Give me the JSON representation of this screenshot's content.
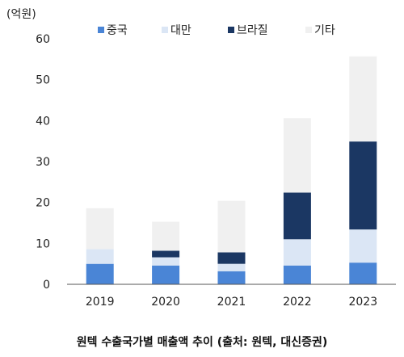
{
  "chart_data": {
    "type": "bar",
    "stacked": true,
    "unit_label": "(억원)",
    "caption": "원텍 수출국가별 매출액 추이 (출처: 원텍, 대신증권)",
    "categories": [
      "2019",
      "2020",
      "2021",
      "2022",
      "2023"
    ],
    "series": [
      {
        "name": "중국",
        "color": "#4a85d6",
        "values": [
          5.0,
          4.6,
          3.2,
          4.6,
          5.3
        ]
      },
      {
        "name": "대만",
        "color": "#dbe6f5",
        "values": [
          3.6,
          2.0,
          1.8,
          6.4,
          8.1
        ]
      },
      {
        "name": "브라질",
        "color": "#1b3763",
        "values": [
          0.0,
          1.6,
          2.8,
          11.4,
          21.5
        ]
      },
      {
        "name": "기타",
        "color": "#f0f0f0",
        "values": [
          10.0,
          7.1,
          12.6,
          18.2,
          20.8
        ]
      }
    ],
    "ylim": [
      0,
      60
    ],
    "yticks": [
      "0",
      "10",
      "20",
      "30",
      "40",
      "50",
      "60"
    ],
    "legend_position": "top",
    "grid": false
  }
}
